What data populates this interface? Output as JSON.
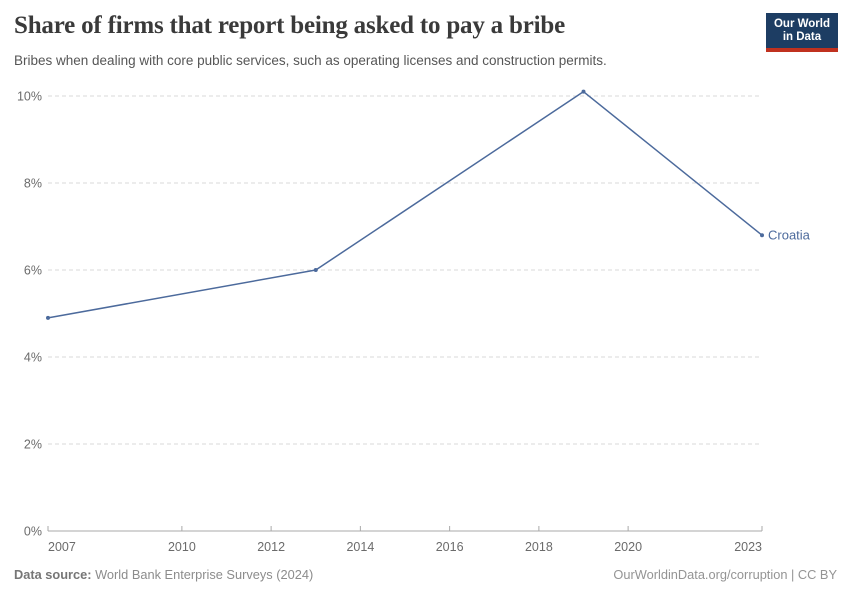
{
  "header": {
    "title": "Share of firms that report being asked to pay a bribe",
    "subtitle": "Bribes when dealing with core public services, such as operating licenses and construction permits.",
    "logo": {
      "line1": "Our World",
      "line2": "in Data",
      "bg_color": "#1d3d63",
      "accent_color": "#c0311f"
    }
  },
  "chart_data": {
    "type": "line",
    "title": "Share of firms that report being asked to pay a bribe",
    "subtitle": "Bribes when dealing with core public services, such as operating licenses and construction permits.",
    "series": [
      {
        "name": "Croatia",
        "color": "#4C6A9C",
        "x": [
          2007,
          2013,
          2019,
          2023
        ],
        "values": [
          4.9,
          6.0,
          10.1,
          6.8
        ]
      }
    ],
    "xlabel": "",
    "ylabel": "",
    "x_range": [
      2007,
      2023
    ],
    "ylim": [
      0,
      10
    ],
    "xticks": [
      2007,
      2010,
      2012,
      2014,
      2016,
      2018,
      2020,
      2023
    ],
    "yticks": [
      0,
      2,
      4,
      6,
      8,
      10
    ],
    "ytick_suffix": "%",
    "grid": "horizontal-dashed",
    "gridline_color": "#d9d9d9",
    "axis_color": "#a9a9a9",
    "legend_position": "end-of-line-label"
  },
  "footer": {
    "source_label": "Data source:",
    "source_text": " World Bank Enterprise Surveys (2024)",
    "attribution": "OurWorldinData.org/corruption | CC BY"
  }
}
